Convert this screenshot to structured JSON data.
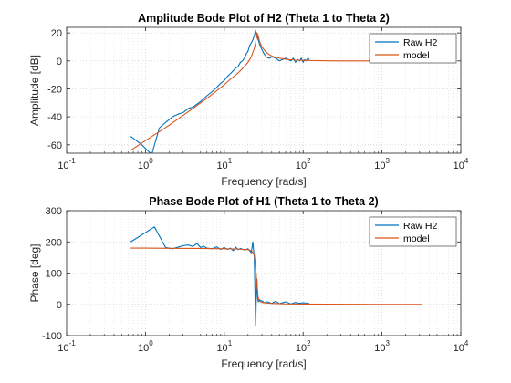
{
  "chart_data": [
    {
      "type": "line",
      "title": "Amplitude Bode Plot of H2 (Theta 1 to Theta 2)",
      "xlabel": "Frequency [rad/s]",
      "ylabel": "Amplitude [dB]",
      "xscale": "log",
      "xlim": [
        0.1,
        10000
      ],
      "ylim": [
        -66,
        24
      ],
      "xticks": [
        0.1,
        1,
        10,
        100,
        1000,
        10000
      ],
      "xtick_labels": [
        {
          "base": "10",
          "exp": "-1"
        },
        {
          "base": "10",
          "exp": "0"
        },
        {
          "base": "10",
          "exp": "1"
        },
        {
          "base": "10",
          "exp": "2"
        },
        {
          "base": "10",
          "exp": "3"
        },
        {
          "base": "10",
          "exp": "4"
        }
      ],
      "yticks": [
        -60,
        -40,
        -20,
        0,
        20
      ],
      "ytick_labels": [
        "-60",
        "-40",
        "-20",
        "0",
        "20"
      ],
      "grid": "on (major and minor, dotted)",
      "legend_position": "top-right",
      "series": [
        {
          "name": "Raw H2",
          "color": "#0072BD",
          "x": [
            0.65,
            0.9,
            1.2,
            1.5,
            1.8,
            2.2,
            2.6,
            3.0,
            3.5,
            4.0,
            5.0,
            6.0,
            7.0,
            8.0,
            9.0,
            10,
            11,
            12,
            13,
            14,
            15,
            16,
            17,
            18,
            19,
            20,
            21,
            22,
            23,
            24,
            25,
            26,
            27,
            28,
            29,
            30,
            32,
            34,
            36,
            38,
            40,
            45,
            50,
            55,
            60,
            65,
            70,
            75,
            80,
            85,
            90,
            95,
            100,
            105,
            110,
            115,
            120
          ],
          "y": [
            -54,
            -60,
            -67,
            -48,
            -44,
            -40,
            -38,
            -37,
            -34,
            -33,
            -29,
            -25,
            -22,
            -19,
            -16,
            -14,
            -11,
            -9,
            -7,
            -5,
            -4,
            -1,
            0,
            2,
            5,
            7,
            11,
            13,
            15,
            18,
            22,
            18,
            15,
            12,
            10,
            8,
            5,
            3,
            2,
            2,
            3,
            2,
            0,
            1,
            2,
            1,
            0,
            2,
            -1,
            1,
            0,
            2,
            -1,
            1,
            0,
            2,
            1
          ]
        },
        {
          "name": "model",
          "color": "#D95319",
          "x": [
            0.65,
            1,
            2,
            3,
            4,
            5,
            7,
            10,
            12,
            14,
            16,
            18,
            20,
            22,
            24,
            25,
            26,
            27,
            28,
            30,
            33,
            36,
            40,
            45,
            50,
            60,
            70,
            80,
            100,
            150,
            200,
            300,
            500,
            1000,
            2000,
            3200
          ],
          "y": [
            -64,
            -57,
            -46,
            -39,
            -34,
            -30,
            -24,
            -17,
            -13,
            -10,
            -7,
            -4,
            -1,
            3,
            9,
            13,
            20,
            18,
            14,
            10,
            7,
            5,
            3.5,
            2.5,
            2,
            1.2,
            0.8,
            0.6,
            0.4,
            0.2,
            0.1,
            0,
            0,
            0,
            0,
            0
          ]
        }
      ]
    },
    {
      "type": "line",
      "title": "Phase Bode Plot of H1 (Theta 1 to Theta 2)",
      "xlabel": "Frequency [rad/s]",
      "ylabel": "Phase [deg]",
      "xscale": "log",
      "xlim": [
        0.1,
        10000
      ],
      "ylim": [
        -100,
        300
      ],
      "xticks": [
        0.1,
        1,
        10,
        100,
        1000,
        10000
      ],
      "xtick_labels": [
        {
          "base": "10",
          "exp": "-1"
        },
        {
          "base": "10",
          "exp": "0"
        },
        {
          "base": "10",
          "exp": "1"
        },
        {
          "base": "10",
          "exp": "2"
        },
        {
          "base": "10",
          "exp": "3"
        },
        {
          "base": "10",
          "exp": "4"
        }
      ],
      "yticks": [
        -100,
        0,
        100,
        200,
        300
      ],
      "ytick_labels": [
        "-100",
        "0",
        "100",
        "200",
        "300"
      ],
      "grid": "on (major and minor, dotted)",
      "legend_position": "top-right",
      "series": [
        {
          "name": "Raw H2",
          "color": "#0072BD",
          "x": [
            0.65,
            1.3,
            1.8,
            2.2,
            2.6,
            3.0,
            3.5,
            4.0,
            4.5,
            5.0,
            5.5,
            6.0,
            7.0,
            8.0,
            9.0,
            10,
            11,
            12,
            13,
            14,
            15,
            16,
            18,
            20,
            22,
            23,
            24,
            25,
            25.5,
            26,
            26.5,
            27,
            28,
            29,
            30,
            32,
            35,
            40,
            45,
            50,
            60,
            70,
            80,
            90,
            100,
            110,
            120
          ],
          "y": [
            200,
            248,
            182,
            178,
            183,
            188,
            190,
            185,
            195,
            182,
            186,
            180,
            178,
            184,
            176,
            182,
            176,
            180,
            172,
            183,
            175,
            179,
            174,
            178,
            165,
            200,
            150,
            -70,
            30,
            80,
            20,
            8,
            15,
            10,
            12,
            5,
            8,
            3,
            10,
            2,
            8,
            1,
            6,
            3,
            5,
            4,
            2
          ]
        },
        {
          "name": "model",
          "color": "#D95319",
          "x": [
            0.65,
            1,
            2,
            5,
            10,
            15,
            20,
            22,
            24,
            25,
            26,
            27,
            28,
            30,
            35,
            40,
            60,
            100,
            200,
            500,
            1000,
            2000,
            3200
          ],
          "y": [
            180,
            180,
            179.5,
            179,
            178,
            177,
            175,
            172,
            160,
            120,
            60,
            20,
            10,
            6,
            4,
            3,
            1.5,
            1,
            0.5,
            0.2,
            0,
            0,
            0
          ]
        }
      ]
    }
  ]
}
